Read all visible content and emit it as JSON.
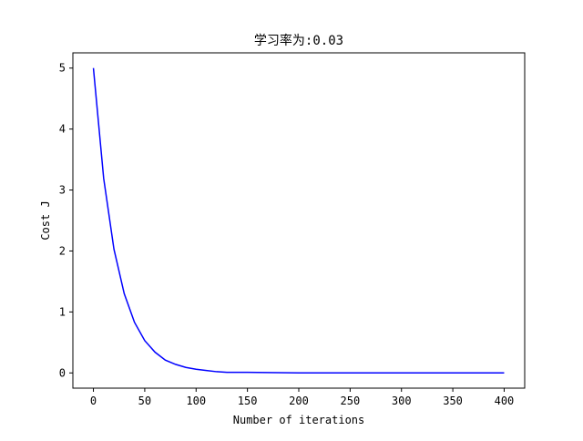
{
  "chart_data": {
    "type": "line",
    "title": "学习率为:0.03",
    "xlabel": "Number of iterations",
    "ylabel": "Cost J",
    "x": [
      0,
      10,
      20,
      30,
      40,
      50,
      60,
      70,
      80,
      90,
      100,
      110,
      120,
      130,
      140,
      150,
      200,
      250,
      300,
      350,
      400
    ],
    "series": [
      {
        "name": "Cost J",
        "color": "#0000ff",
        "values": [
          5,
          3.19,
          2.03,
          1.3,
          0.83,
          0.53,
          0.34,
          0.21,
          0.14,
          0.09,
          0.06,
          0.04,
          0.02,
          0.01,
          0.01,
          0.01,
          0,
          0,
          0,
          0,
          0
        ]
      }
    ],
    "xlim": [
      -20,
      420
    ],
    "ylim": [
      -0.25,
      5.25
    ],
    "xticks": [
      0,
      50,
      100,
      150,
      200,
      250,
      300,
      350,
      400
    ],
    "yticks": [
      0,
      1,
      2,
      3,
      4,
      5
    ],
    "grid": false
  }
}
